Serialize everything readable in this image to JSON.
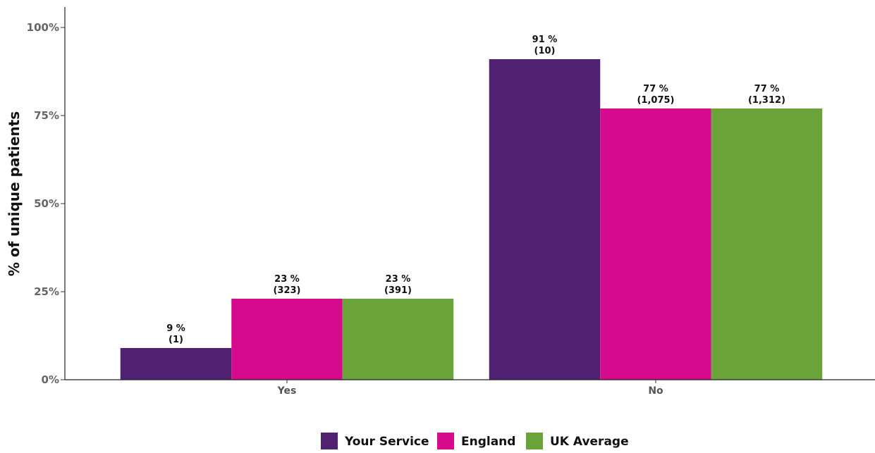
{
  "chart_data": {
    "type": "bar",
    "categories": [
      "Yes",
      "No"
    ],
    "series": [
      {
        "name": "Your Service",
        "color": "#4f2170",
        "values": [
          9,
          91
        ],
        "labels": [
          [
            "9 %",
            "(1)"
          ],
          [
            "91 %",
            "(10)"
          ]
        ]
      },
      {
        "name": "England",
        "color": "#d60a8c",
        "values": [
          23,
          77
        ],
        "labels": [
          [
            "23 %",
            "(323)"
          ],
          [
            "77 %",
            "(1,075)"
          ]
        ]
      },
      {
        "name": "UK Average",
        "color": "#69a33a",
        "values": [
          23,
          77
        ],
        "labels": [
          [
            "23 %",
            "(391)"
          ],
          [
            "77 %",
            "(1,312)"
          ]
        ]
      }
    ],
    "ylabel": "% of unique patients",
    "xlabel": "",
    "ylim": [
      0,
      100
    ],
    "yticks": [
      0,
      25,
      50,
      75,
      100
    ],
    "ytick_labels": [
      "0%",
      "25%",
      "50%",
      "75%",
      "100%"
    ],
    "legend_position": "bottom",
    "grid": false
  }
}
